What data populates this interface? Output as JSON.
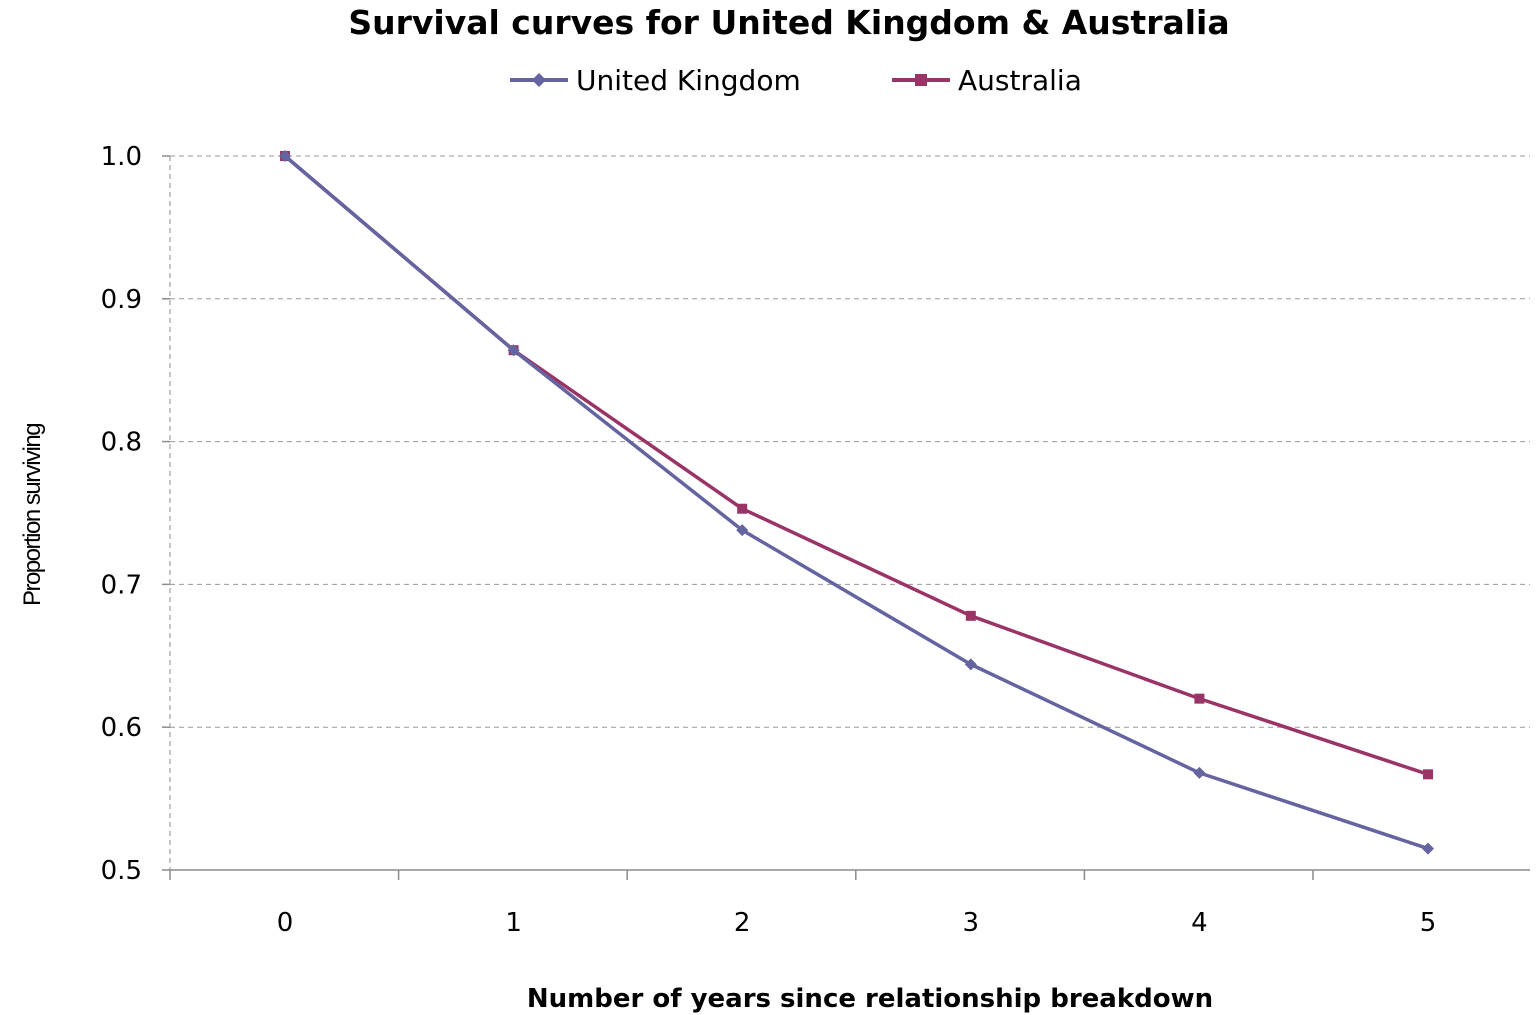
{
  "chart_data": {
    "type": "line",
    "title": "Survival curves for United Kingdom & Australia",
    "xlabel": "Number of years since relationship breakdown",
    "ylabel": "Proportion surviving",
    "x": [
      0,
      1,
      2,
      3,
      4,
      5
    ],
    "x_tick_labels": [
      "0",
      "1",
      "2",
      "3",
      "4",
      "5"
    ],
    "y_tick_labels": [
      "1.0",
      "0.9",
      "0.8",
      "0.7",
      "0.6",
      "0.5"
    ],
    "y_ticks": [
      1.0,
      0.9,
      0.8,
      0.7,
      0.6,
      0.5
    ],
    "ylim": [
      0.5,
      1.0
    ],
    "grid": "horizontal dashed",
    "legend_position": "top",
    "series": [
      {
        "name": "United Kingdom",
        "color": "#6464a0",
        "marker": "diamond",
        "values": [
          1.0,
          0.864,
          0.738,
          0.644,
          0.568,
          0.515
        ]
      },
      {
        "name": "Australia",
        "color": "#9a3366",
        "marker": "square",
        "values": [
          1.0,
          0.864,
          0.753,
          0.678,
          0.62,
          0.567
        ]
      }
    ]
  }
}
